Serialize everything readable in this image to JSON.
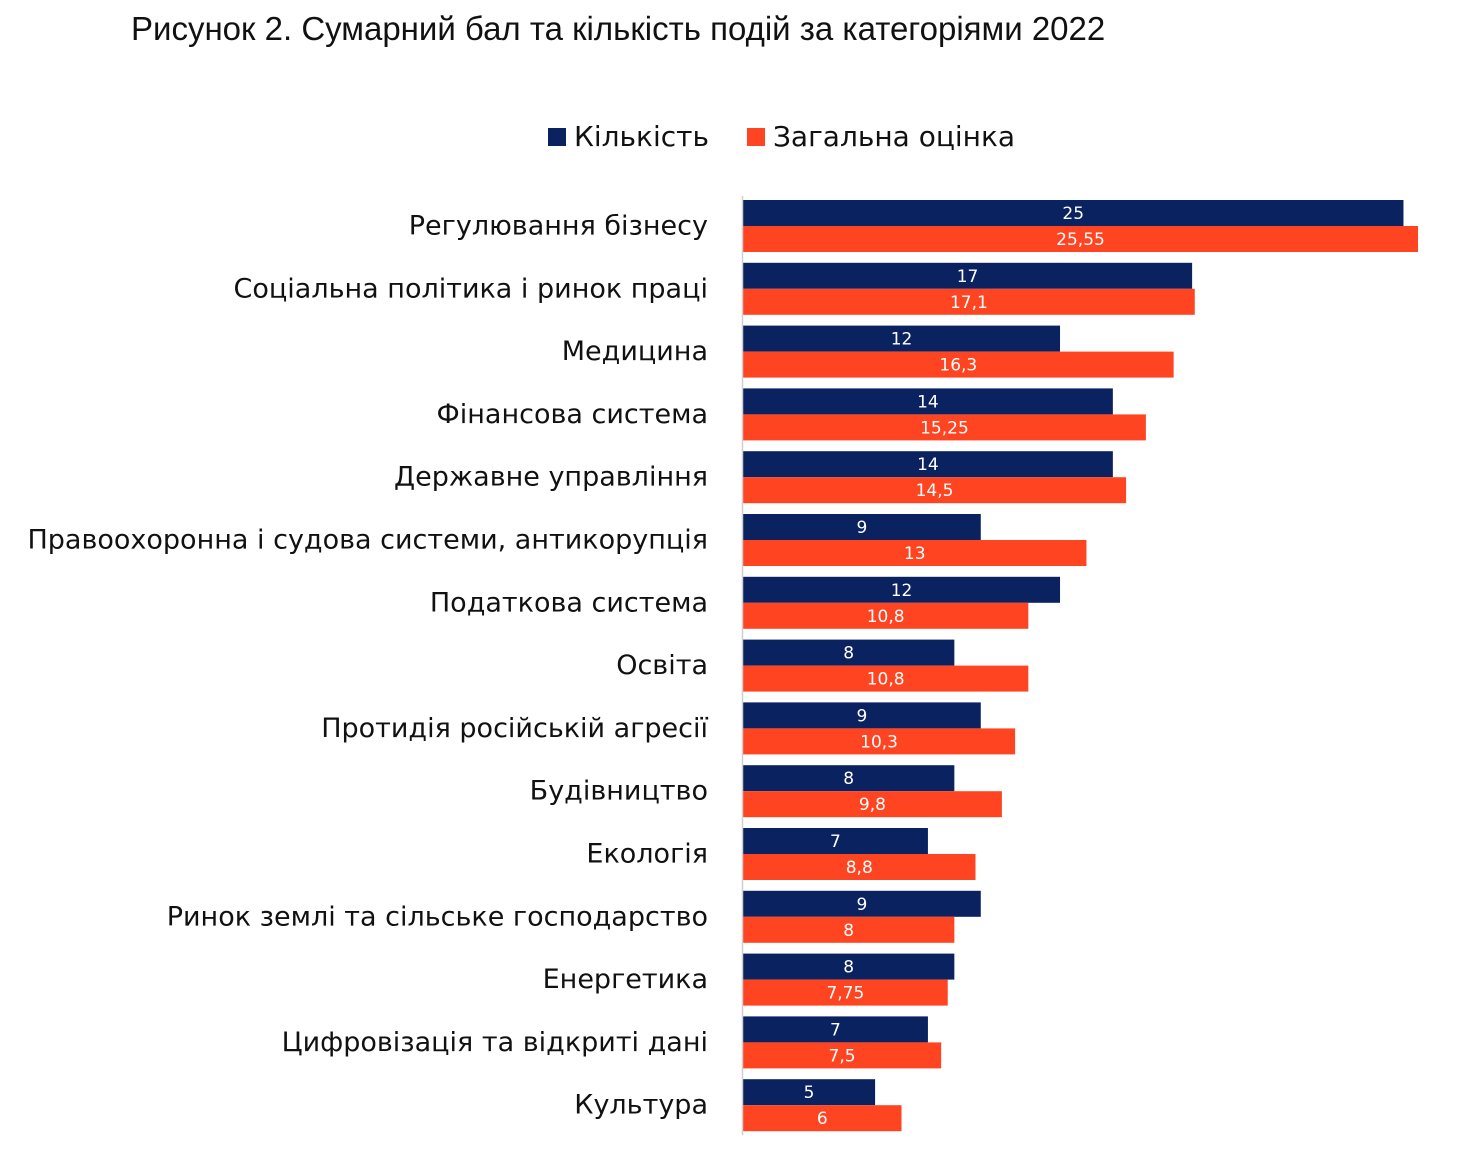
{
  "figure": {
    "title": "Рисунок 2. Сумарний бал та кількість подій за категоріями 2022"
  },
  "colors": {
    "count": "#0b2260",
    "score": "#ff4422",
    "axis": "#cfcfcf"
  },
  "chart_data": {
    "type": "bar",
    "orientation": "horizontal",
    "title": "Рисунок 2. Сумарний бал та кількість подій за категоріями 2022",
    "legend_position": "top",
    "grid": false,
    "xlim": [
      0,
      25.55
    ],
    "categories": [
      "Регулювання бізнесу",
      "Соціальна політика і ринок праці",
      "Медицина",
      "Фінансова система",
      "Державне управління",
      "Правоохоронна і судова системи, антикорупція",
      "Податкова система",
      "Освіта",
      "Протидія російській агресії",
      "Будівництво",
      "Екологія",
      "Ринок землі та сільське господарство",
      "Енергетика",
      "Цифровізація та відкриті дані",
      "Культура"
    ],
    "series": [
      {
        "name": "Кількість",
        "color": "#0b2260",
        "values": [
          25,
          17,
          12,
          14,
          14,
          9,
          12,
          8,
          9,
          8,
          7,
          9,
          8,
          7,
          5
        ],
        "labels": [
          "25",
          "17",
          "12",
          "14",
          "14",
          "9",
          "12",
          "8",
          "9",
          "8",
          "7",
          "9",
          "8",
          "7",
          "5"
        ]
      },
      {
        "name": "Загальна оцінка",
        "color": "#ff4422",
        "values": [
          25.55,
          17.1,
          16.3,
          15.25,
          14.5,
          13,
          10.8,
          10.8,
          10.3,
          9.8,
          8.8,
          8,
          7.75,
          7.5,
          6
        ],
        "labels": [
          "25,55",
          "17,1",
          "16,3",
          "15,25",
          "14,5",
          "13",
          "10,8",
          "10,8",
          "10,3",
          "9,8",
          "8,8",
          "8",
          "7,75",
          "7,5",
          "6"
        ]
      }
    ]
  }
}
